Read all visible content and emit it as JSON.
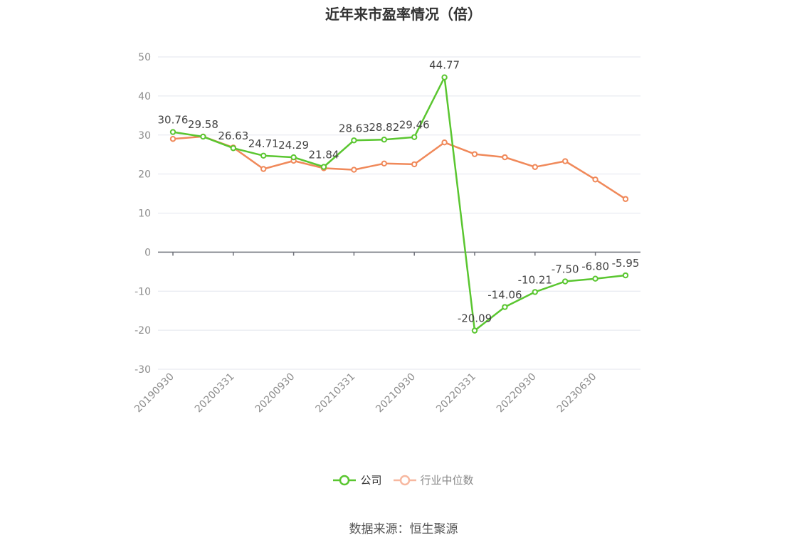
{
  "chart_data": {
    "type": "line",
    "title": "近年来市盈率情况（倍）",
    "source": "数据来源：恒生聚源",
    "ylim": [
      -30,
      50
    ],
    "yticks": [
      50,
      40,
      30,
      20,
      10,
      0,
      -10,
      -20,
      -30
    ],
    "x_tick_labels": [
      "20190930",
      "20200331",
      "20200930",
      "20210331",
      "20210930",
      "20220331",
      "20220930",
      "20230630"
    ],
    "x_count": 16,
    "grid": true,
    "legend_position": "bottom",
    "series": [
      {
        "name": "公司",
        "color": "#5ac630",
        "show_labels": true,
        "values": [
          30.76,
          29.58,
          26.63,
          24.71,
          24.29,
          21.84,
          28.63,
          28.82,
          29.46,
          44.77,
          -20.09,
          -14.06,
          -10.21,
          -7.5,
          -6.8,
          -5.95
        ],
        "labels": [
          "30.76",
          "29.58",
          "26.63",
          "24.71",
          "24.29",
          "21.84",
          "28.63",
          "28.82",
          "29.46",
          "44.77",
          "-20.09",
          "-14.06",
          "-10.21",
          "-7.50",
          "-6.80",
          "-5.95"
        ]
      },
      {
        "name": "行业中位数",
        "color": "#f0895a",
        "show_labels": false,
        "values": [
          29.0,
          29.6,
          26.8,
          21.3,
          23.4,
          21.5,
          21.1,
          22.7,
          22.5,
          28.1,
          25.1,
          24.3,
          21.8,
          23.3,
          18.6,
          13.6
        ]
      }
    ]
  },
  "legend": {
    "company_color": "#5ac630",
    "industry_color": "#f7b8a0"
  }
}
